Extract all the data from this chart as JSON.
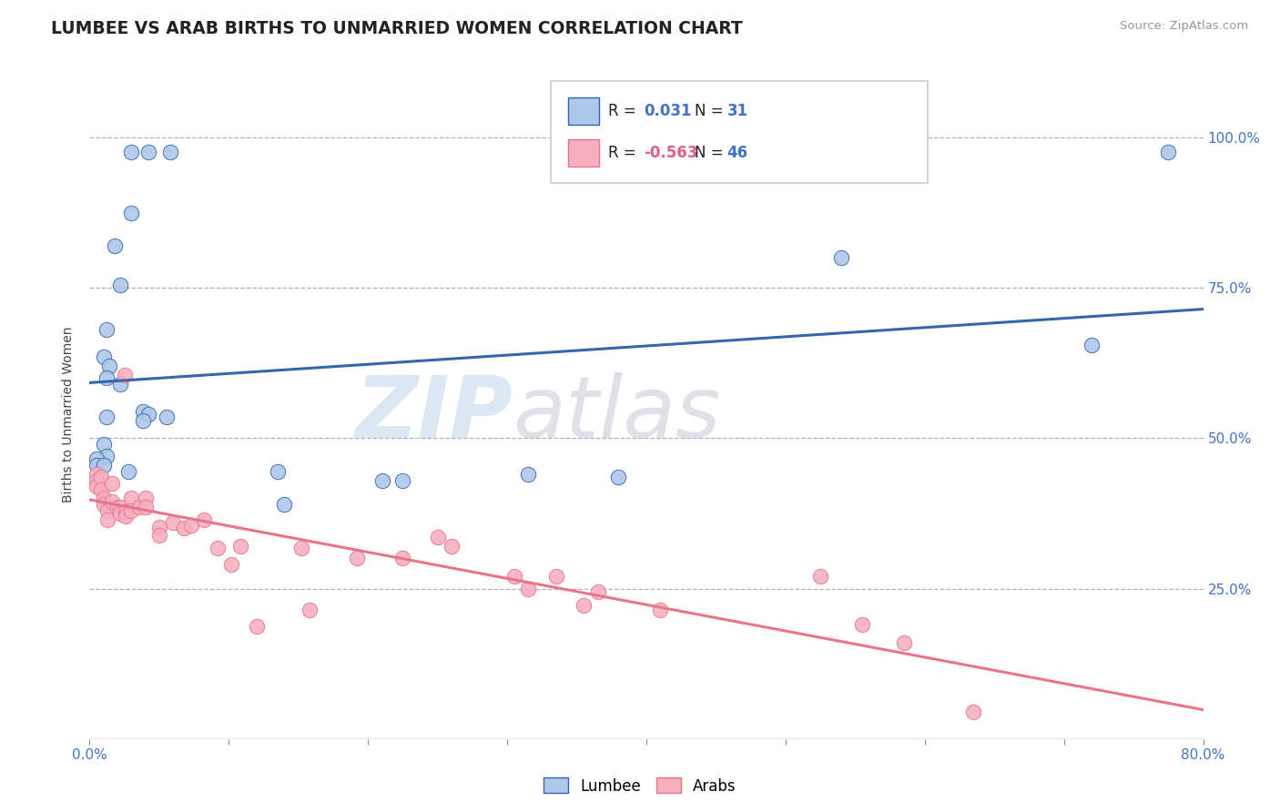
{
  "title": "LUMBEE VS ARAB BIRTHS TO UNMARRIED WOMEN CORRELATION CHART",
  "source_text": "Source: ZipAtlas.com",
  "ylabel": "Births to Unmarried Women",
  "ytick_values": [
    0.25,
    0.5,
    0.75,
    1.0
  ],
  "xmin": 0.0,
  "xmax": 0.8,
  "ymin": 0.0,
  "ymax": 1.08,
  "lumbee_color": "#adc8e8",
  "arab_color": "#f5afc0",
  "lumbee_line_color": "#3565b0",
  "arab_line_color": "#e8758a",
  "watermark_zip": "ZIP",
  "watermark_atlas": "atlas",
  "lumbee_points": [
    [
      0.03,
      0.975
    ],
    [
      0.042,
      0.975
    ],
    [
      0.058,
      0.975
    ],
    [
      0.018,
      0.82
    ],
    [
      0.03,
      0.875
    ],
    [
      0.022,
      0.755
    ],
    [
      0.012,
      0.68
    ],
    [
      0.01,
      0.635
    ],
    [
      0.014,
      0.62
    ],
    [
      0.012,
      0.6
    ],
    [
      0.022,
      0.59
    ],
    [
      0.038,
      0.545
    ],
    [
      0.042,
      0.54
    ],
    [
      0.038,
      0.53
    ],
    [
      0.055,
      0.535
    ],
    [
      0.012,
      0.535
    ],
    [
      0.01,
      0.49
    ],
    [
      0.012,
      0.47
    ],
    [
      0.005,
      0.465
    ],
    [
      0.005,
      0.455
    ],
    [
      0.01,
      0.455
    ],
    [
      0.028,
      0.445
    ],
    [
      0.135,
      0.445
    ],
    [
      0.21,
      0.43
    ],
    [
      0.225,
      0.43
    ],
    [
      0.315,
      0.44
    ],
    [
      0.14,
      0.39
    ],
    [
      0.38,
      0.435
    ],
    [
      0.54,
      0.8
    ],
    [
      0.72,
      0.655
    ],
    [
      0.775,
      0.975
    ]
  ],
  "arab_points": [
    [
      0.005,
      0.44
    ],
    [
      0.005,
      0.43
    ],
    [
      0.005,
      0.42
    ],
    [
      0.008,
      0.435
    ],
    [
      0.008,
      0.415
    ],
    [
      0.01,
      0.4
    ],
    [
      0.01,
      0.39
    ],
    [
      0.013,
      0.38
    ],
    [
      0.013,
      0.365
    ],
    [
      0.016,
      0.425
    ],
    [
      0.016,
      0.395
    ],
    [
      0.02,
      0.385
    ],
    [
      0.022,
      0.385
    ],
    [
      0.022,
      0.375
    ],
    [
      0.025,
      0.605
    ],
    [
      0.026,
      0.378
    ],
    [
      0.026,
      0.37
    ],
    [
      0.03,
      0.4
    ],
    [
      0.03,
      0.38
    ],
    [
      0.036,
      0.385
    ],
    [
      0.04,
      0.4
    ],
    [
      0.04,
      0.385
    ],
    [
      0.05,
      0.352
    ],
    [
      0.05,
      0.338
    ],
    [
      0.06,
      0.36
    ],
    [
      0.068,
      0.35
    ],
    [
      0.073,
      0.355
    ],
    [
      0.082,
      0.365
    ],
    [
      0.092,
      0.318
    ],
    [
      0.102,
      0.29
    ],
    [
      0.108,
      0.32
    ],
    [
      0.12,
      0.188
    ],
    [
      0.152,
      0.318
    ],
    [
      0.158,
      0.215
    ],
    [
      0.192,
      0.3
    ],
    [
      0.225,
      0.3
    ],
    [
      0.25,
      0.335
    ],
    [
      0.26,
      0.32
    ],
    [
      0.305,
      0.27
    ],
    [
      0.315,
      0.25
    ],
    [
      0.335,
      0.27
    ],
    [
      0.355,
      0.222
    ],
    [
      0.365,
      0.245
    ],
    [
      0.41,
      0.215
    ],
    [
      0.525,
      0.27
    ],
    [
      0.555,
      0.19
    ],
    [
      0.585,
      0.16
    ],
    [
      0.635,
      0.045
    ]
  ]
}
